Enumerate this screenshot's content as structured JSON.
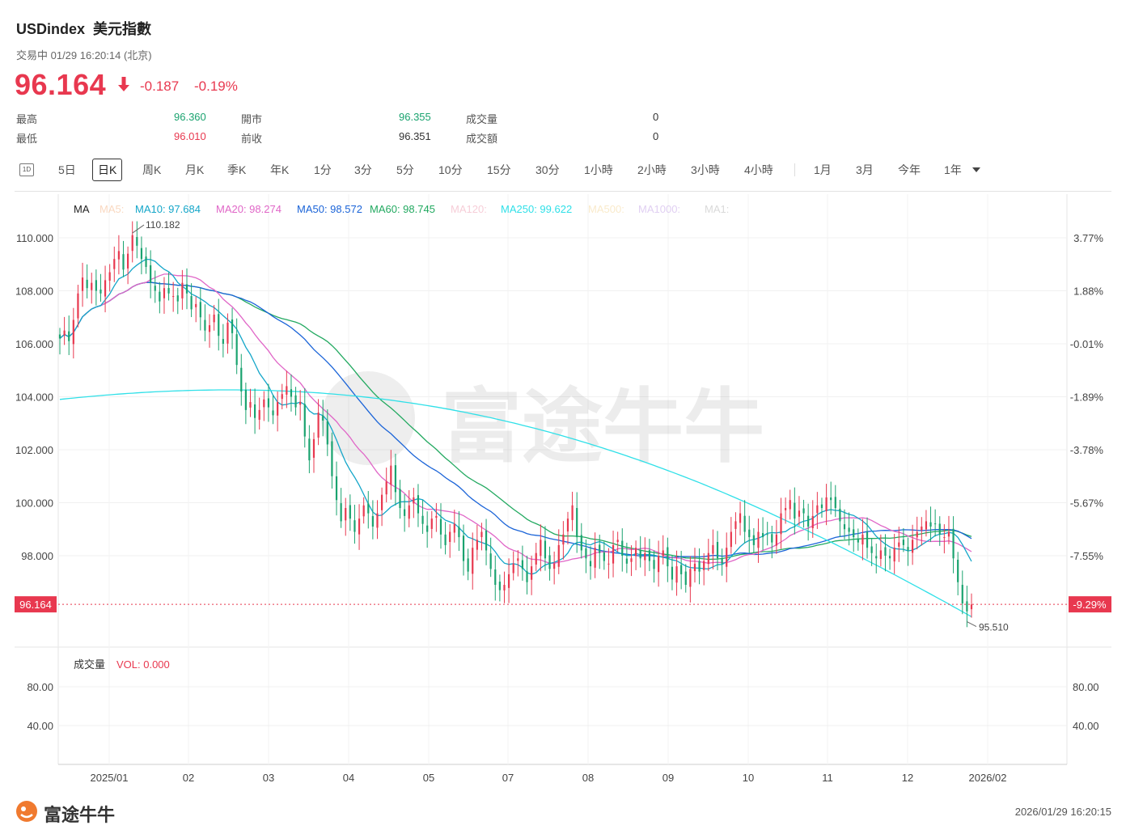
{
  "header": {
    "symbol": "USDindex",
    "name": "美元指數",
    "status": "交易中 01/29 16:20:14 (北京)",
    "price": "96.164",
    "change": "-0.187",
    "change_pct": "-0.19%",
    "arrow_icon": "arrow-down-icon"
  },
  "stats": {
    "high_label": "最高",
    "high": "96.360",
    "low_label": "最低",
    "low": "96.010",
    "open_label": "開市",
    "open": "96.355",
    "prev_label": "前收",
    "prev": "96.351",
    "vol_label": "成交量",
    "vol": "0",
    "amt_label": "成交額",
    "amt": "0"
  },
  "toolbar": {
    "icon_label": "1D",
    "items": [
      "5日",
      "日K",
      "周K",
      "月K",
      "季K",
      "年K",
      "1分",
      "3分",
      "5分",
      "10分",
      "15分",
      "30分",
      "1小時",
      "2小時",
      "3小時",
      "4小時",
      "1月",
      "3月",
      "今年",
      "1年"
    ],
    "active": "日K"
  },
  "footer": {
    "brand": "富途牛牛",
    "timestamp": "2026/01/29 16:20:15",
    "watermark": "富途牛牛"
  },
  "colors": {
    "up": "#e8384f",
    "down": "#1aa36f",
    "ma5": "#f5b98d",
    "ma10": "#14a6c9",
    "ma20": "#e066c7",
    "ma50": "#1b64d8",
    "ma60": "#22a960",
    "ma120": "#f0a5b8",
    "ma250": "#30e0e8",
    "ma500": "#f5d9a0",
    "ma1000": "#c8a8e8"
  },
  "chart_data": {
    "type": "candlestick",
    "ma_legend": {
      "title": "MA",
      "items": [
        {
          "label": "MA5:",
          "color": "#f5b98d",
          "faded": true
        },
        {
          "label": "MA10: 97.684",
          "color": "#14a6c9"
        },
        {
          "label": "MA20: 98.274",
          "color": "#e066c7"
        },
        {
          "label": "MA50: 98.572",
          "color": "#1b64d8"
        },
        {
          "label": "MA60: 98.745",
          "color": "#22a960"
        },
        {
          "label": "MA120:",
          "color": "#f0a5b8",
          "faded": true
        },
        {
          "label": "MA250: 99.622",
          "color": "#30e0e8"
        },
        {
          "label": "MA500:",
          "color": "#f5d9a0",
          "faded": true
        },
        {
          "label": "MA1000:",
          "color": "#c8a8e8",
          "faded": true
        },
        {
          "label": "MA1:",
          "color": "#bbbbbb",
          "faded": true
        }
      ]
    },
    "y_ticks": [
      "110.000",
      "108.000",
      "106.000",
      "104.000",
      "102.000",
      "100.000",
      "98.000"
    ],
    "y_tick_values": [
      110,
      108,
      106,
      104,
      102,
      100,
      98
    ],
    "right_ticks": [
      "3.77%",
      "1.88%",
      "-0.01%",
      "-1.89%",
      "-3.78%",
      "-5.67%",
      "-7.55%"
    ],
    "current_price_label": "96.164",
    "current_pct_label": "-9.29%",
    "current_price": 96.164,
    "high_marker": {
      "label": "110.182",
      "value": 110.182
    },
    "low_marker": {
      "label": "95.510",
      "value": 95.51
    },
    "x_ticks": [
      "2025/01",
      "02",
      "03",
      "04",
      "05",
      "07",
      "08",
      "09",
      "10",
      "11",
      "12",
      "2026/02"
    ],
    "ylim": [
      94.8,
      111.3
    ],
    "series": {
      "close": [
        106.2,
        106.5,
        106.1,
        106.9,
        107.9,
        108.5,
        108.1,
        108.3,
        108.0,
        107.9,
        108.4,
        108.7,
        109.2,
        109.5,
        108.8,
        109.4,
        110.1,
        109.7,
        109.2,
        108.9,
        108.3,
        108.0,
        107.6,
        108.1,
        107.9,
        107.8,
        107.6,
        108.3,
        107.9,
        107.3,
        107.5,
        107.0,
        106.5,
        106.7,
        107.1,
        106.3,
        106.0,
        106.8,
        106.4,
        105.2,
        104.2,
        103.5,
        103.8,
        103.2,
        103.5,
        103.9,
        103.6,
        103.3,
        103.8,
        104.1,
        104.4,
        104.0,
        103.6,
        103.8,
        102.5,
        101.6,
        102.4,
        103.4,
        103.1,
        102.2,
        101.0,
        100.1,
        99.3,
        99.8,
        99.4,
        98.9,
        99.4,
        99.9,
        99.6,
        99.1,
        99.6,
        100.3,
        100.8,
        101.4,
        100.4,
        99.8,
        99.5,
        99.9,
        100.2,
        99.6,
        99.2,
        98.9,
        99.4,
        99.5,
        98.8,
        98.4,
        98.9,
        99.2,
        98.7,
        97.8,
        97.4,
        98.3,
        98.6,
        98.9,
        98.2,
        97.5,
        96.9,
        96.7,
        96.9,
        97.3,
        97.7,
        97.9,
        97.5,
        97.0,
        97.6,
        98.1,
        98.6,
        97.9,
        97.5,
        97.7,
        98.4,
        98.8,
        99.4,
        99.9,
        98.7,
        98.2,
        97.9,
        97.6,
        98.3,
        98.1,
        97.8,
        97.7,
        98.4,
        98.6,
        98.0,
        97.7,
        97.9,
        98.3,
        97.9,
        98.1,
        97.8,
        97.5,
        98.0,
        98.2,
        97.6,
        97.1,
        97.6,
        97.3,
        96.9,
        97.5,
        97.7,
        97.4,
        97.8,
        98.1,
        98.4,
        97.9,
        97.7,
        98.3,
        98.9,
        99.3,
        99.6,
        98.9,
        98.7,
        98.4,
        98.9,
        98.7,
        98.8,
        98.5,
        98.8,
        99.6,
        99.8,
        100.1,
        99.4,
        99.7,
        99.6,
        99.1,
        99.5,
        99.9,
        99.8,
        100.2,
        100.1,
        99.8,
        99.3,
        99.0,
        98.9,
        98.7,
        98.5,
        98.8,
        98.3,
        98.1,
        97.9,
        98.2,
        98.0,
        97.9,
        98.3,
        98.5,
        98.4,
        98.2,
        98.6,
        98.9,
        99.1,
        99.3,
        99.1,
        99.2,
        98.8,
        98.7,
        98.9,
        97.9,
        97.0,
        96.2,
        95.9,
        96.16
      ]
    }
  }
}
